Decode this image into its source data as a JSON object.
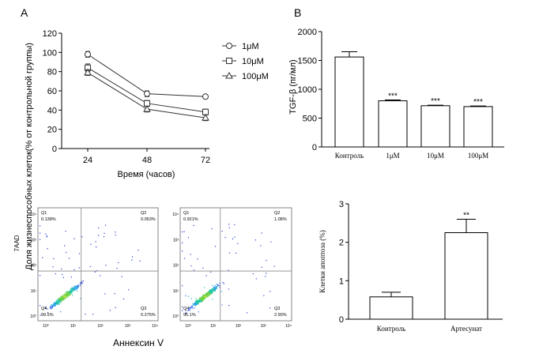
{
  "panel_a_letter": "A",
  "panel_b_letter": "B",
  "chart_data": [
    {
      "id": "line",
      "type": "line",
      "x": [
        24,
        48,
        72
      ],
      "xticks": [
        "24",
        "48",
        "72"
      ],
      "series": [
        {
          "name": "1μM",
          "marker": "circle",
          "values": [
            98,
            57,
            54
          ],
          "err": [
            3,
            3,
            2
          ]
        },
        {
          "name": "10μM",
          "marker": "square",
          "values": [
            84,
            47,
            38
          ],
          "err": [
            4,
            3,
            3
          ]
        },
        {
          "name": "100μM",
          "marker": "triangle",
          "values": [
            79,
            41,
            32
          ],
          "err": [
            3,
            3,
            3
          ]
        }
      ],
      "ylim": [
        0,
        120
      ],
      "yticks": [
        0,
        20,
        40,
        60,
        80,
        100,
        120
      ],
      "xlabel": "Время (часов)",
      "ylabel": "Доля жизнеспособных клеток(% от контрольной группы)"
    },
    {
      "id": "tgf",
      "type": "bar",
      "categories": [
        "Контроль",
        "1μM",
        "10μM",
        "100μM"
      ],
      "values": [
        1560,
        800,
        715,
        700
      ],
      "err": [
        90,
        15,
        10,
        10
      ],
      "sig": [
        "",
        "***",
        "***",
        "***"
      ],
      "ylim": [
        0,
        2000
      ],
      "yticks": [
        0,
        500,
        1000,
        1500,
        2000
      ],
      "ylabel": "TGF-β (пг/мл)"
    },
    {
      "id": "apop",
      "type": "bar",
      "categories": [
        "Контроль",
        "Артесунат"
      ],
      "values": [
        0.58,
        2.25
      ],
      "err": [
        0.12,
        0.35
      ],
      "sig": [
        "",
        "**"
      ],
      "ylim": [
        0,
        3
      ],
      "yticks": [
        0,
        1,
        2,
        3
      ],
      "ylabel": "Клетки апоптоза (%)"
    },
    {
      "id": "flow",
      "type": "scatter",
      "xlabel": "Аннексин V",
      "ylabel": "7AAD",
      "plots": [
        {
          "q1": "Q1",
          "q1v": "0.138%",
          "q2": "Q2",
          "q2v": "0.063%",
          "q3": "Q3",
          "q3v": "0.275%",
          "q4": "Q4",
          "q4v": "99.5%"
        },
        {
          "q1": "Q1",
          "q1v": "0.921%",
          "q2": "Q2",
          "q2v": "1.08%",
          "q3": "Q3",
          "q3v": "2.90%",
          "q4": "Q4",
          "q4v": "95.1%"
        }
      ]
    }
  ]
}
